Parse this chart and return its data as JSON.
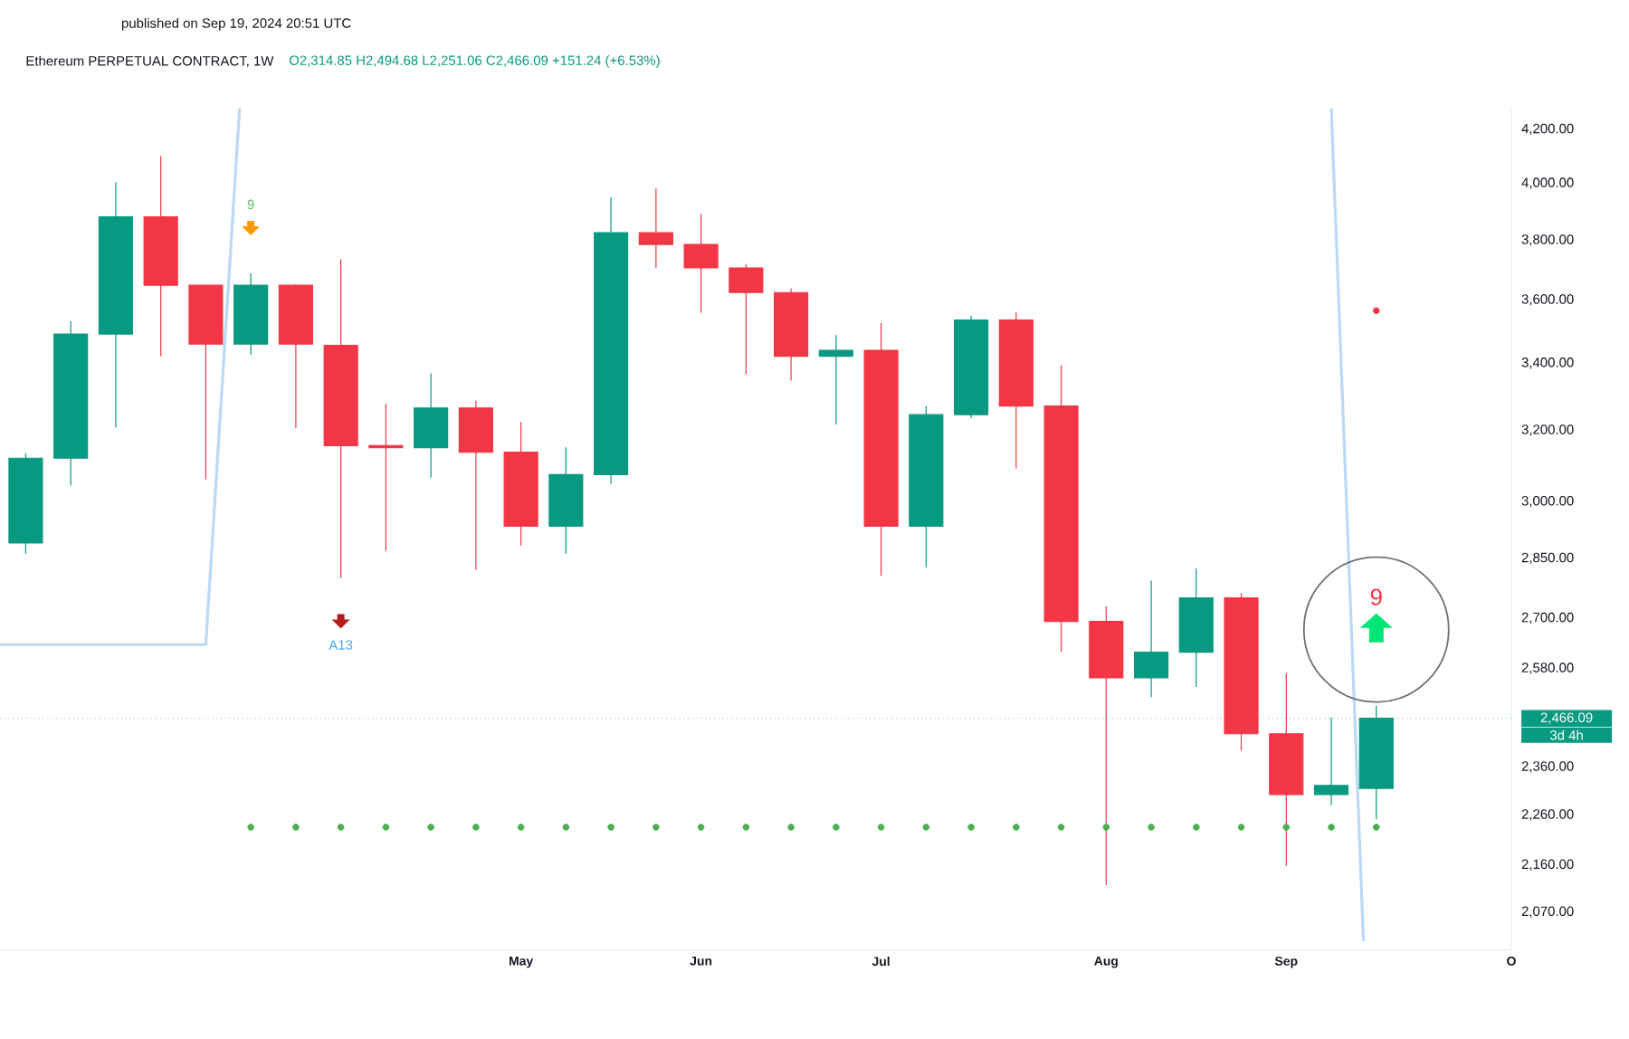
{
  "chart_data": {
    "type": "candlestick",
    "title": "Ethereum PERPETUAL CONTRACT, 1W",
    "subtitle": "O2,314.85 H2,494.68 L2,251.06 C2,466.09 +151.24 (+6.53%)",
    "x": [
      "2024-02-19",
      "2024-02-26",
      "2024-03-04",
      "2024-03-11",
      "2024-03-18",
      "2024-03-25",
      "2024-04-01",
      "2024-04-08",
      "2024-04-15",
      "2024-04-22",
      "2024-04-29",
      "2024-05-06",
      "2024-05-13",
      "2024-05-20",
      "2024-05-27",
      "2024-06-03",
      "2024-06-10",
      "2024-06-17",
      "2024-06-24",
      "2024-07-01",
      "2024-07-08",
      "2024-07-15",
      "2024-07-22",
      "2024-07-29",
      "2024-08-05",
      "2024-08-12",
      "2024-08-19",
      "2024-08-26",
      "2024-09-02",
      "2024-09-09",
      "2024-09-16"
    ],
    "ohlc": [
      [
        2890,
        3134,
        2862,
        3120
      ],
      [
        3120,
        3532,
        3044,
        3491
      ],
      [
        3491,
        4004,
        3208,
        3881
      ],
      [
        3881,
        4100,
        3421,
        3648
      ],
      [
        3648,
        3650,
        3061,
        3459
      ],
      [
        3459,
        3688,
        3425,
        3648
      ],
      [
        3648,
        3652,
        3206,
        3459
      ],
      [
        3455,
        3735,
        2800,
        3156
      ],
      [
        3156,
        3278,
        2870,
        3150
      ],
      [
        3150,
        3369,
        3066,
        3265
      ],
      [
        3265,
        3287,
        2820,
        3137
      ],
      [
        3137,
        3224,
        2883,
        2934
      ],
      [
        2934,
        3151,
        2862,
        3074
      ],
      [
        3074,
        3950,
        3049,
        3826
      ],
      [
        3826,
        3982,
        3705,
        3785
      ],
      [
        3785,
        3892,
        3559,
        3706
      ],
      [
        3706,
        3718,
        3365,
        3624
      ],
      [
        3624,
        3638,
        3347,
        3421
      ],
      [
        3421,
        3487,
        3217,
        3440
      ],
      [
        3440,
        3526,
        2805,
        2934
      ],
      [
        2934,
        3271,
        2827,
        3245
      ],
      [
        3245,
        3549,
        3235,
        3535
      ],
      [
        3535,
        3561,
        3091,
        3271
      ],
      [
        3271,
        3393,
        2619,
        2692
      ],
      [
        2692,
        2729,
        2121,
        2558
      ],
      [
        2558,
        2793,
        2514,
        2618
      ],
      [
        2618,
        2824,
        2537,
        2750
      ],
      [
        2750,
        2762,
        2395,
        2432
      ],
      [
        2432,
        2569,
        2158,
        2302
      ],
      [
        2302,
        2468,
        2280,
        2321
      ],
      [
        2314.85,
        2494.68,
        2251.06,
        2466.09
      ]
    ],
    "colors": [
      "#089981",
      "#089981",
      "#089981",
      "#f23645",
      "#f23645",
      "#089981",
      "#f23645",
      "#f23645",
      "#f23645",
      "#089981",
      "#f23645",
      "#f23645",
      "#089981",
      "#089981",
      "#f23645",
      "#f23645",
      "#f23645",
      "#f23645",
      "#089981",
      "#f23645",
      "#089981",
      "#089981",
      "#f23645",
      "#f23645",
      "#f23645",
      "#089981",
      "#089981",
      "#f23645",
      "#f23645",
      "#089981",
      "#089981"
    ],
    "series": [
      {
        "type": "line",
        "color": "#bbd9f5",
        "x": [
          "2024-02-15",
          "2024-03-18",
          "2024-03-23T06:00"
        ],
        "values": [
          2636,
          2636,
          4280
        ]
      },
      {
        "type": "line",
        "color": "#bbd9f5",
        "x": [
          "2024-09-09",
          "2024-09-14"
        ],
        "values": [
          4280,
          2016
        ]
      },
      {
        "type": "scatter",
        "color": "#4caf50",
        "x": [
          "2024-03-25",
          "2024-04-01",
          "2024-04-08",
          "2024-04-15",
          "2024-04-22",
          "2024-04-29",
          "2024-05-06",
          "2024-05-13",
          "2024-05-20",
          "2024-05-27",
          "2024-06-03",
          "2024-06-10",
          "2024-06-17",
          "2024-06-24",
          "2024-07-01",
          "2024-07-08",
          "2024-07-15",
          "2024-07-22",
          "2024-07-29",
          "2024-08-05",
          "2024-08-12",
          "2024-08-19",
          "2024-08-26",
          "2024-09-02",
          "2024-09-09",
          "2024-09-16"
        ],
        "values": [
          2235,
          2235,
          2235,
          2235,
          2235,
          2235,
          2235,
          2235,
          2235,
          2235,
          2235,
          2235,
          2235,
          2235,
          2235,
          2235,
          2235,
          2235,
          2235,
          2235,
          2235,
          2235,
          2235,
          2235,
          2235,
          2235
        ]
      },
      {
        "type": "scatter",
        "color": "#f23645",
        "x": [
          "2024-09-16"
        ],
        "values": [
          3565
        ]
      }
    ],
    "xlim": [
      "2024-02-15",
      "2024-10-07"
    ],
    "xticks": [
      {
        "value": "2024-05-06",
        "label": "May"
      },
      {
        "value": "2024-06-03",
        "label": "Jun"
      },
      {
        "value": "2024-07-01",
        "label": "Jul"
      },
      {
        "value": "2024-08-05",
        "label": "Aug"
      },
      {
        "value": "2024-09-02",
        "label": "Sep"
      },
      {
        "value": "2024-10-07",
        "label": "O"
      }
    ],
    "log": "y",
    "ylim": [
      2000,
      4280
    ],
    "yticks": [
      {
        "value": 2070,
        "label": "2,070.00"
      },
      {
        "value": 2160,
        "label": "2,160.00"
      },
      {
        "value": 2260,
        "label": "2,260.00"
      },
      {
        "value": 2360,
        "label": "2,360.00"
      },
      {
        "value": 2580,
        "label": "2,580.00"
      },
      {
        "value": 2700,
        "label": "2,700.00"
      },
      {
        "value": 2850,
        "label": "2,850.00"
      },
      {
        "value": 3000,
        "label": "3,000.00"
      },
      {
        "value": 3200,
        "label": "3,200.00"
      },
      {
        "value": 3400,
        "label": "3,400.00"
      },
      {
        "value": 3600,
        "label": "3,600.00"
      },
      {
        "value": 3800,
        "label": "3,800.00"
      },
      {
        "value": 4000,
        "label": "4,000.00"
      },
      {
        "value": 4200,
        "label": "4,200.00"
      }
    ],
    "ref_lines": [
      {
        "axis": "y",
        "value": 2466.09,
        "label": "2,466.09",
        "color": "#089981",
        "line_style": "dotted"
      }
    ],
    "annotations": [
      "published on Sep 19, 2024 20:51 UTC",
      "3d 4h",
      "9",
      "A13",
      "9"
    ]
  }
}
